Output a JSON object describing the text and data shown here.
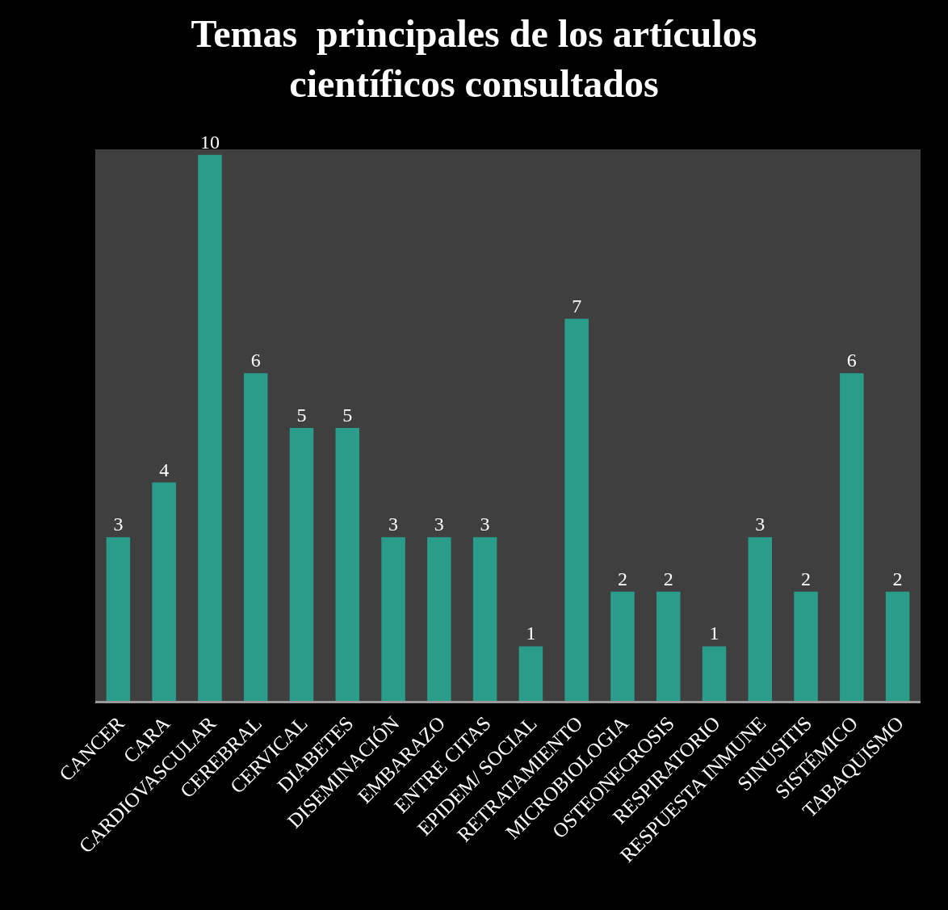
{
  "chart_data": {
    "type": "bar",
    "title": "Temas  principales de los artículos\ncientíficos consultados",
    "categories": [
      "CANCER",
      "CARA",
      "CARDIOVASCULAR",
      "CEREBRAL",
      "CERVICAL",
      "DIABETES",
      "DISEMINACIÓN",
      "EMBARAZO",
      "ENTRE CITAS",
      "EPIDEM/ SOCIAL",
      "RETRATAMIENTO",
      "MICROBIOLOGIA",
      "OSTEONECROSIS",
      "RESPIRATORIO",
      "RESPUESTA INMUNE",
      "SINUSITIS",
      "SISTÉMICO",
      "TABAQUISMO"
    ],
    "values": [
      3,
      4,
      10,
      6,
      5,
      5,
      3,
      3,
      3,
      1,
      7,
      2,
      2,
      1,
      3,
      2,
      6,
      2
    ],
    "color": "#2a9d8a",
    "data_labels": true,
    "tick_labels": "x"
  }
}
